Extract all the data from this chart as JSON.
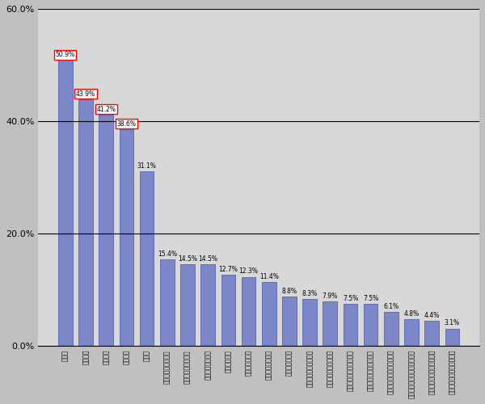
{
  "categories": [
    "適応感",
    "成長実感",
    "価値実感",
    "力の発揮",
    "達成感",
    "職場での意見の尊重",
    "上司の成長への配慮",
    "職場目標の明確化",
    "会社の将来性",
    "上司への信頼感",
    "職場の目標達成感",
    "上司の方針説明",
    "上司のビジョンの発信",
    "後輩獲の挑戦への支援",
    "上司からの成功への承認",
    "上司からの挑戦への配慮",
    "職場でのキャリアイメージ",
    "社内での制度・仕組みの整備",
    "会社の組み込みの環境作り",
    "創造的な仕事への環境作り"
  ],
  "values": [
    50.9,
    43.9,
    41.2,
    38.6,
    31.1,
    15.4,
    14.5,
    14.5,
    12.7,
    12.3,
    11.4,
    8.8,
    8.3,
    7.9,
    7.5,
    7.5,
    6.1,
    4.8,
    4.4,
    3.1
  ],
  "bar_color": "#7b87c8",
  "bar_edge_color": "#4455aa",
  "background_color": "#c0c0c0",
  "plot_bg_color": "#d8d8d8",
  "grid_color": "#000000",
  "ylim": [
    0,
    60
  ],
  "yticks": [
    0,
    20,
    40,
    60
  ],
  "ytick_labels": [
    "0.0%",
    "20.0%",
    "40.0%",
    "60.0%"
  ],
  "boxed_bars": [
    0,
    1,
    2,
    3
  ],
  "box_color": "red"
}
